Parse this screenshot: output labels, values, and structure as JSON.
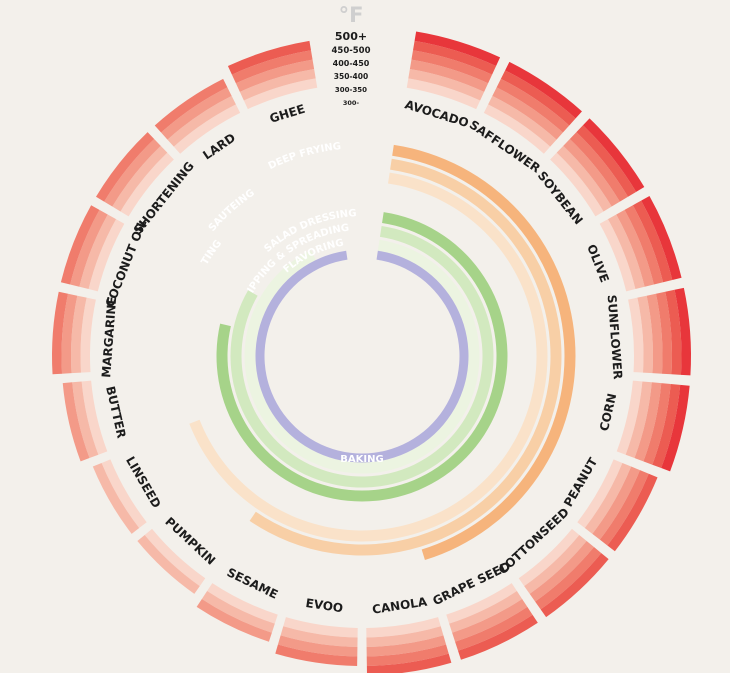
{
  "chart_data": {
    "type": "radial",
    "temperature_unit": "°F",
    "temperature_bands": [
      "500+",
      "450-500",
      "400-450",
      "350-400",
      "300-350",
      "300-"
    ],
    "oils": [
      {
        "name": "AVOCADO",
        "smoke_band": 5
      },
      {
        "name": "SAFFLOWER",
        "smoke_band": 5
      },
      {
        "name": "SOYBEAN",
        "smoke_band": 5
      },
      {
        "name": "OLIVE",
        "smoke_band": 5
      },
      {
        "name": "SUNFLOWER",
        "smoke_band": 5
      },
      {
        "name": "CORN",
        "smoke_band": 5
      },
      {
        "name": "PEANUT",
        "smoke_band": 4
      },
      {
        "name": "COTTONSEED",
        "smoke_band": 4
      },
      {
        "name": "GRAPE SEED",
        "smoke_band": 4
      },
      {
        "name": "CANOLA",
        "smoke_band": 4
      },
      {
        "name": "EVOO",
        "smoke_band": 3
      },
      {
        "name": "SESAME",
        "smoke_band": 2
      },
      {
        "name": "PUMPKIN",
        "smoke_band": 1
      },
      {
        "name": "LINSEED",
        "smoke_band": 1
      },
      {
        "name": "BUTTER",
        "smoke_band": 2
      },
      {
        "name": "MARGARINE",
        "smoke_band": 3
      },
      {
        "name": "COCONUT OIL",
        "smoke_band": 3
      },
      {
        "name": "SHORTENING",
        "smoke_band": 3
      },
      {
        "name": "LARD",
        "smoke_band": 3
      },
      {
        "name": "GHEE",
        "smoke_band": 4
      }
    ],
    "uses": [
      {
        "name": "DEEP FRYING",
        "color": "#f6b47c",
        "start_oil": 0,
        "end_oil": 9
      },
      {
        "name": "SAUTEING",
        "color": "#f8cfa6",
        "start_oil": 0,
        "end_oil": 12
      },
      {
        "name": "SWEATING",
        "color": "#fae2c9",
        "start_oil": 0,
        "end_oil": 14
      },
      {
        "name": "SALAD DRESSING",
        "color": "#a6d389",
        "start_oil": 0,
        "end_oil": 16
      },
      {
        "name": "DIPPING & SPREADING",
        "color": "#d2e9bf",
        "start_oil": 0,
        "end_oil": 17
      },
      {
        "name": "FLAVORING",
        "color": "#ecf4e1",
        "start_oil": 0,
        "end_oil": 19
      },
      {
        "name": "BAKING",
        "color": "#b4b1dd",
        "start_oil": 0,
        "end_oil": 20
      }
    ],
    "colors": {
      "background": "#f3f0eb",
      "band_colors": [
        "#e8363b",
        "#ec5c52",
        "#f07c6c",
        "#f39a88",
        "#f6b9a8",
        "#f9d6ca"
      ]
    }
  }
}
